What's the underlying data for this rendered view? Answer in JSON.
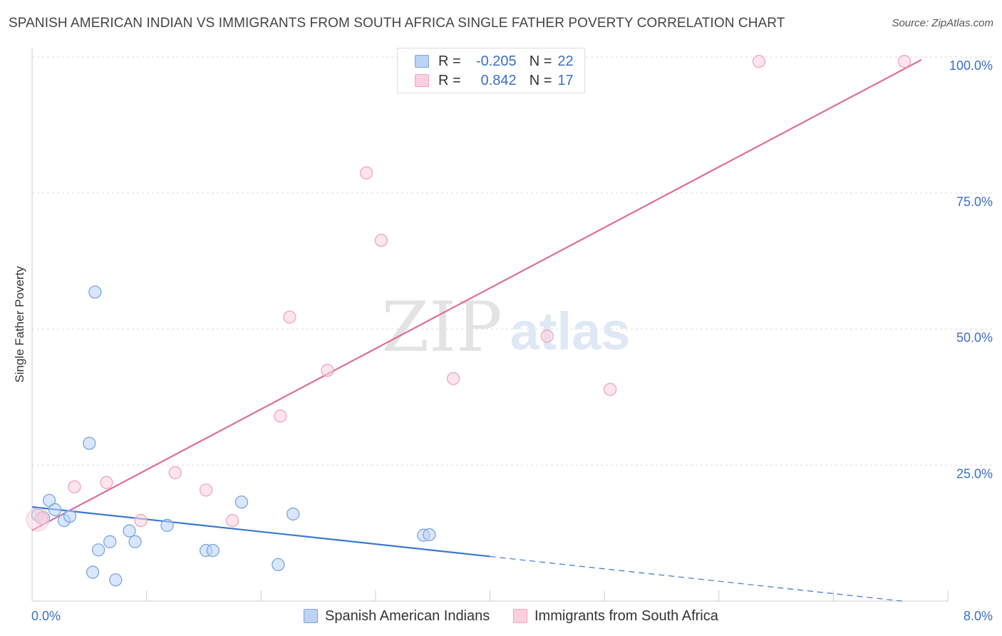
{
  "title": "SPANISH AMERICAN INDIAN VS IMMIGRANTS FROM SOUTH AFRICA SINGLE FATHER POVERTY CORRELATION CHART",
  "source": "Source: ZipAtlas.com",
  "watermark": {
    "zip": "ZIP",
    "atlas": "atlas"
  },
  "legend": {
    "blue": {
      "r_label": "R =",
      "r_value": "-0.205",
      "n_label": "N =",
      "n_value": "22"
    },
    "pink": {
      "r_label": "R =",
      "r_value": "0.842",
      "n_label": "N =",
      "n_value": "17"
    }
  },
  "chart_data": {
    "type": "scatter",
    "title": "SPANISH AMERICAN INDIAN VS IMMIGRANTS FROM SOUTH AFRICA SINGLE FATHER POVERTY CORRELATION CHART",
    "xlabel": "",
    "ylabel": "Single Father Poverty",
    "xlim": [
      0,
      8
    ],
    "ylim": [
      0,
      100
    ],
    "x_tick_labels": [
      "0.0%",
      "8.0%"
    ],
    "y_ticks": [
      25,
      50,
      75,
      100
    ],
    "y_tick_labels": [
      "25.0%",
      "50.0%",
      "75.0%",
      "100.0%"
    ],
    "series": [
      {
        "name": "Spanish American Indians",
        "color": "#7aa6e0",
        "line_color": "#3a78d0",
        "points": [
          [
            0.05,
            15.8
          ],
          [
            0.1,
            15.3
          ],
          [
            0.15,
            18.5
          ],
          [
            0.2,
            16.8
          ],
          [
            0.28,
            14.8
          ],
          [
            0.33,
            15.6
          ],
          [
            0.5,
            29.0
          ],
          [
            0.53,
            5.3
          ],
          [
            0.55,
            56.8
          ],
          [
            0.58,
            9.4
          ],
          [
            0.68,
            10.9
          ],
          [
            0.73,
            3.9
          ],
          [
            0.85,
            12.9
          ],
          [
            0.9,
            10.9
          ],
          [
            1.18,
            13.9
          ],
          [
            1.52,
            9.3
          ],
          [
            1.58,
            9.3
          ],
          [
            1.83,
            18.2
          ],
          [
            2.15,
            6.7
          ],
          [
            2.28,
            16.0
          ],
          [
            3.42,
            12.1
          ],
          [
            3.47,
            12.2
          ]
        ],
        "trend": {
          "x0": 0.0,
          "y0": 17.3,
          "x1": 4.0,
          "y1": 8.2,
          "dash_to_x": 7.6,
          "dash_to_y": 0.0
        }
      },
      {
        "name": "Immigrants from South Africa",
        "color": "#f3a3bd",
        "line_color": "#e06d96",
        "points": [
          [
            0.08,
            15.2
          ],
          [
            0.37,
            21.0
          ],
          [
            0.65,
            21.8
          ],
          [
            0.95,
            14.8
          ],
          [
            1.25,
            23.6
          ],
          [
            1.52,
            20.4
          ],
          [
            1.75,
            14.8
          ],
          [
            2.17,
            34.0
          ],
          [
            2.25,
            52.2
          ],
          [
            2.58,
            42.4
          ],
          [
            2.92,
            78.7
          ],
          [
            3.05,
            66.3
          ],
          [
            3.68,
            40.9
          ],
          [
            4.5,
            48.7
          ],
          [
            5.05,
            38.9
          ],
          [
            6.35,
            99.2
          ],
          [
            7.62,
            99.2
          ]
        ],
        "trend": {
          "x0": 0.0,
          "y0": 13.0,
          "x1": 7.77,
          "y1": 99.5
        }
      }
    ]
  },
  "bottom_legend": {
    "blue_label": "Spanish American Indians",
    "pink_label": "Immigrants from South Africa"
  }
}
